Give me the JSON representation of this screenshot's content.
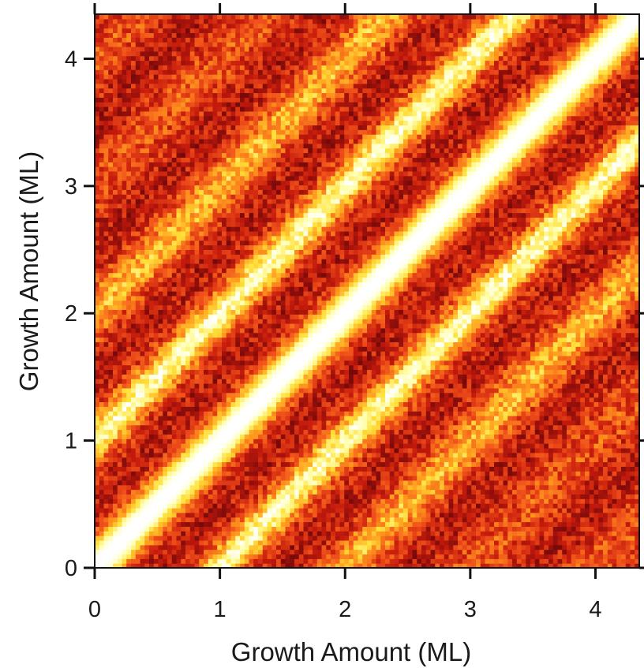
{
  "chart_data": {
    "type": "heatmap",
    "title": "",
    "xlabel": "Growth Amount (ML)",
    "ylabel": "Growth Amount (ML)",
    "xlim": [
      0,
      4.35
    ],
    "ylim": [
      0,
      4.35
    ],
    "x_ticks": [
      0,
      1,
      2,
      3,
      4
    ],
    "y_ticks": [
      0,
      1,
      2,
      3,
      4
    ],
    "x_tick_labels": [
      "0",
      "1",
      "2",
      "3",
      "4"
    ],
    "y_tick_labels": [
      "0",
      "1",
      "2",
      "3",
      "4"
    ],
    "colormap": "hot",
    "colorscale": [
      "#2a0000",
      "#7a0a0a",
      "#c41a0c",
      "#f0501a",
      "#ff9a1e",
      "#ffe03a",
      "#ffffb0",
      "#ffffff"
    ],
    "grid": false,
    "legend": "none",
    "description_model": {
      "diagonal_peak": 1.0,
      "diagonal_width_ml": 0.14,
      "oscillation_period_ml": 1.0,
      "secondary_band_offset_ml": 1.0,
      "tertiary_band_offset_ml": 2.0,
      "background_level": 0.35
    }
  }
}
